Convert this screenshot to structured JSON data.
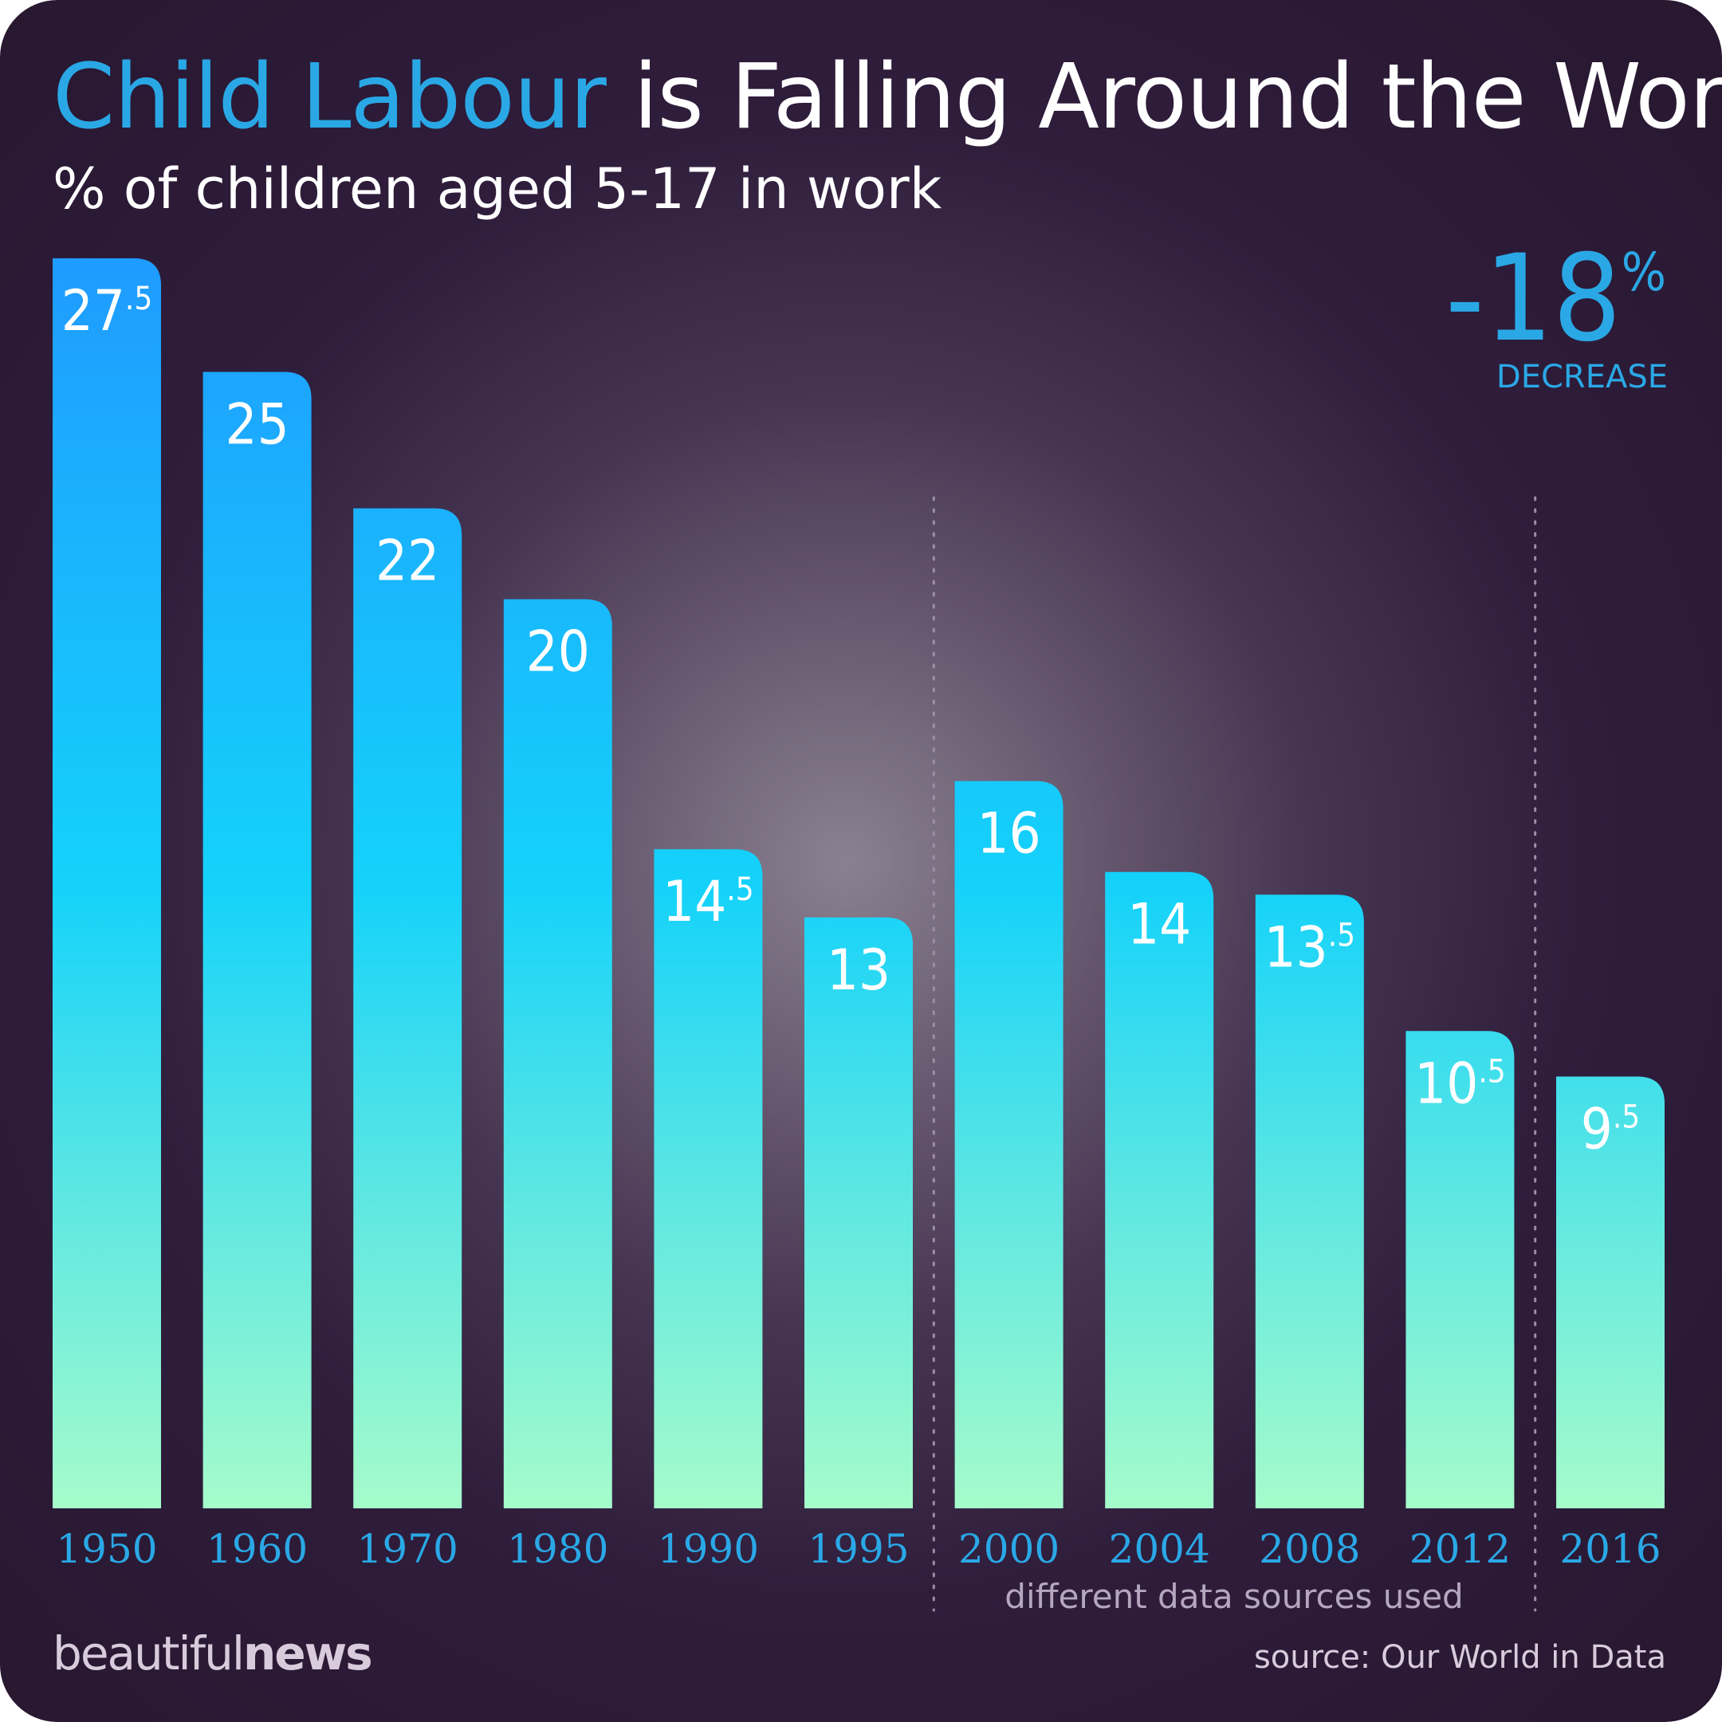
{
  "header": {
    "title_accent": "Child Labour",
    "title_rest": "is Falling Around the World",
    "subtitle": "% of children aged 5-17 in work"
  },
  "stat": {
    "sign": "-",
    "number": "18",
    "unit": "%",
    "label": "DECREASE"
  },
  "note": "different data sources used",
  "footer": {
    "brand_light": "beautiful",
    "brand_bold": "news",
    "source": "source: Our World in Data"
  },
  "colors": {
    "accent": "#2aa8e6",
    "bar_top": "#1f9bff",
    "bar_mid": "#14d2fa",
    "bar_bottom": "#a6fccb",
    "tick_label": "#2aa8e6",
    "background": "#27172f"
  },
  "chart_data": {
    "type": "bar",
    "categories": [
      "1950",
      "1960",
      "1970",
      "1980",
      "1990",
      "1995",
      "2000",
      "2004",
      "2008",
      "2012",
      "2016"
    ],
    "values": [
      27.5,
      25,
      22,
      20,
      14.5,
      13,
      16,
      14,
      13.5,
      10.5,
      9.5
    ],
    "value_labels": [
      {
        "main": "27",
        "frac": ".5"
      },
      {
        "main": "25",
        "frac": ""
      },
      {
        "main": "22",
        "frac": ""
      },
      {
        "main": "20",
        "frac": ""
      },
      {
        "main": "14",
        "frac": ".5"
      },
      {
        "main": "13",
        "frac": ""
      },
      {
        "main": "16",
        "frac": ""
      },
      {
        "main": "14",
        "frac": ""
      },
      {
        "main": "13",
        "frac": ".5"
      },
      {
        "main": "10",
        "frac": ".5"
      },
      {
        "main": "9",
        "frac": ".5"
      }
    ],
    "title": "Child Labour is Falling Around the World",
    "subtitle": "% of children aged 5-17 in work",
    "ylim": [
      0,
      27.5
    ],
    "grid": false,
    "separators_after": [
      "1995",
      "2012"
    ]
  }
}
